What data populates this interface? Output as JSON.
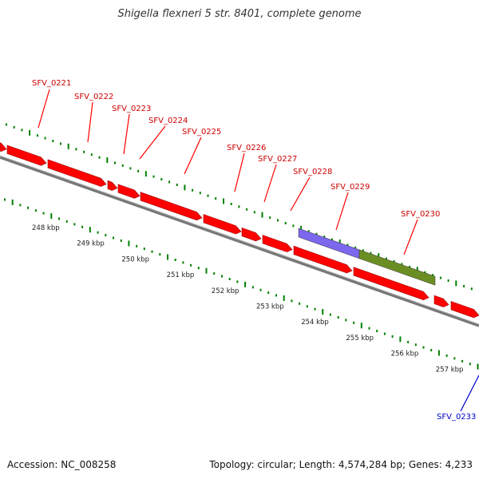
{
  "title": "Shigella flexneri 5 str. 8401, complete genome",
  "footer": {
    "accession": "Accession: NC_008258",
    "summary": "Topology: circular; Length: 4,574,284 bp; Genes: 4,233"
  },
  "colors": {
    "gene": "#ff0000",
    "gene_label": "#cc0000",
    "highlight_label": "#0000cc",
    "purple_feature": "#7b68ee",
    "green_feature": "#6b8e23",
    "tick": "#008000",
    "backbone": "#808080"
  },
  "gene_labels": [
    "SFV_0221",
    "SFV_0222",
    "SFV_0223",
    "SFV_0224",
    "SFV_0225",
    "SFV_0226",
    "SFV_0227",
    "SFV_0228",
    "SFV_0229",
    "SFV_0230"
  ],
  "highlight_label": "SFV_0233",
  "kbp_labels": [
    "248 kbp",
    "249 kbp",
    "250 kbp",
    "251 kbp",
    "252 kbp",
    "253 kbp",
    "254 kbp",
    "255 kbp",
    "256 kbp",
    "257 kbp"
  ]
}
